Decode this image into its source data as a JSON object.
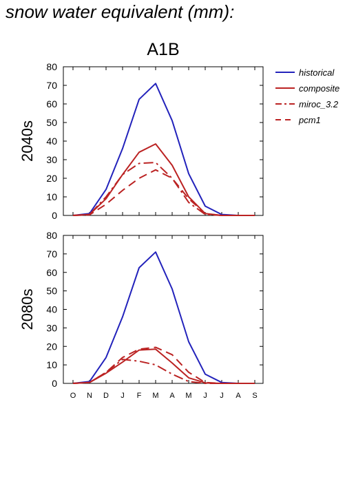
{
  "page": {
    "title": "snow water equivalent (mm):"
  },
  "chart_data": {
    "type": "line",
    "title": "A1B",
    "categories": [
      "O",
      "N",
      "D",
      "J",
      "F",
      "M",
      "A",
      "M",
      "J",
      "J",
      "A",
      "S"
    ],
    "ylim": [
      0,
      80
    ],
    "yticks": [
      0,
      10,
      20,
      30,
      40,
      50,
      60,
      70,
      80
    ],
    "grid": false,
    "legend_position": "right",
    "legend": [
      {
        "name": "historical",
        "color": "#2222bb",
        "dash": "solid"
      },
      {
        "name": "composite",
        "color": "#bb2222",
        "dash": "solid"
      },
      {
        "name": "miroc_3.2",
        "color": "#bb2222",
        "dash": "dash-dot"
      },
      {
        "name": "pcm1",
        "color": "#bb2222",
        "dash": "dashed"
      }
    ],
    "panels": [
      {
        "ylabel": "2040s",
        "series": [
          {
            "name": "historical",
            "values": [
              0,
              1,
              14,
              36,
              62.5,
              71,
              51,
              22.5,
              5,
              0.5,
              0,
              0
            ]
          },
          {
            "name": "composite",
            "values": [
              0,
              0.5,
              9,
              22,
              34,
              38.5,
              27,
              10,
              1,
              0,
              0,
              0
            ]
          },
          {
            "name": "miroc_3.2",
            "values": [
              0,
              0.5,
              10,
              22,
              28,
              28.5,
              20,
              7,
              0.5,
              0,
              0,
              0
            ]
          },
          {
            "name": "pcm1",
            "values": [
              0,
              0.3,
              6,
              13.5,
              20,
              24.5,
              20,
              9,
              1,
              0,
              0,
              0
            ]
          }
        ]
      },
      {
        "ylabel": "2080s",
        "series": [
          {
            "name": "historical",
            "values": [
              0,
              1,
              14,
              36,
              62.5,
              71,
              51,
              22.5,
              5,
              0.5,
              0,
              0
            ]
          },
          {
            "name": "composite",
            "values": [
              0,
              0.5,
              5.5,
              11.5,
              18,
              18.5,
              11,
              3,
              0.3,
              0,
              0,
              0
            ]
          },
          {
            "name": "miroc_3.2",
            "values": [
              0,
              0.5,
              6,
              13,
              12,
              10,
              5,
              1,
              0,
              0,
              0,
              0
            ]
          },
          {
            "name": "pcm1",
            "values": [
              0,
              0.5,
              6,
              14,
              18.5,
              19.5,
              15.5,
              6,
              0.5,
              0,
              0,
              0
            ]
          }
        ]
      }
    ]
  }
}
